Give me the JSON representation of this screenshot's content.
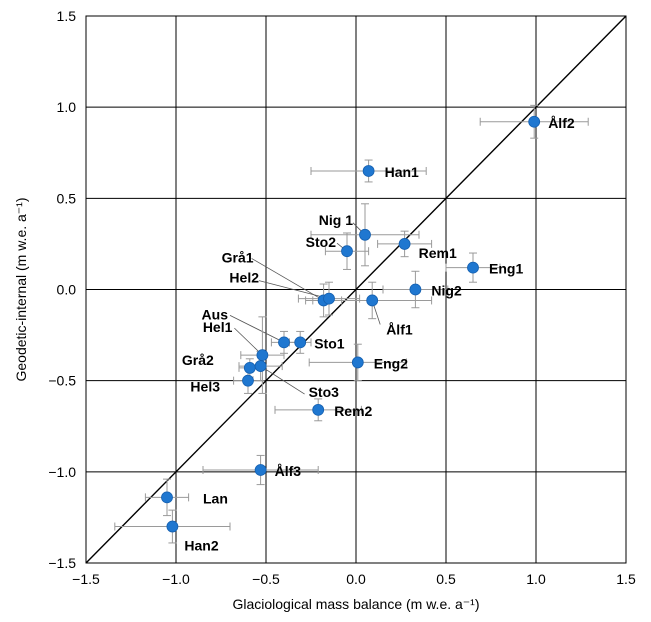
{
  "chart_data": {
    "type": "scatter",
    "xlabel": "Glaciological mass balance (m w.e. a⁻¹)",
    "ylabel": "Geodetic-internal  (m w.e. a⁻¹)",
    "xlim": [
      -1.5,
      1.5
    ],
    "ylim": [
      -1.5,
      1.5
    ],
    "x_ticks": [
      "−1.5",
      "−1.0",
      "−0.5",
      "0.0",
      "0.5",
      "1.0",
      "1.5"
    ],
    "y_ticks": [
      "−1.5",
      "−1.0",
      "−0.5",
      "0.0",
      "0.5",
      "1.0",
      "1.5"
    ],
    "grid": true,
    "reference_line": "1:1",
    "marker_color": "#1f77d0",
    "points": [
      {
        "label": "Ålf2",
        "x": 0.99,
        "y": 0.92,
        "xerr": 0.3,
        "yerr": 0.09
      },
      {
        "label": "Han1",
        "x": 0.07,
        "y": 0.65,
        "xerr": 0.32,
        "yerr": 0.06
      },
      {
        "label": "Nig 1",
        "x": 0.05,
        "y": 0.3,
        "xerr": 0.3,
        "yerr": 0.17
      },
      {
        "label": "Rem1",
        "x": 0.27,
        "y": 0.25,
        "xerr": 0.15,
        "yerr": 0.07
      },
      {
        "label": "Sto2",
        "x": -0.05,
        "y": 0.21,
        "xerr": 0.12,
        "yerr": 0.1
      },
      {
        "label": "Eng1",
        "x": 0.65,
        "y": 0.12,
        "xerr": 0.15,
        "yerr": 0.08
      },
      {
        "label": "Grå1",
        "x": -0.18,
        "y": -0.06,
        "xerr": 0.1,
        "yerr": 0.09
      },
      {
        "label": "Hel2",
        "x": -0.15,
        "y": -0.05,
        "xerr": 0.17,
        "yerr": 0.09
      },
      {
        "label": "Nig2",
        "x": 0.33,
        "y": 0.0,
        "xerr": 0.18,
        "yerr": 0.1
      },
      {
        "label": "Ålf1",
        "x": 0.09,
        "y": -0.06,
        "xerr": 0.33,
        "yerr": 0.1
      },
      {
        "label": "Aus",
        "x": -0.4,
        "y": -0.29,
        "xerr": 0.07,
        "yerr": 0.06
      },
      {
        "label": "Sto1",
        "x": -0.31,
        "y": -0.29,
        "xerr": 0.06,
        "yerr": 0.06
      },
      {
        "label": "Hel1",
        "x": -0.52,
        "y": -0.36,
        "xerr": 0.12,
        "yerr": 0.21
      },
      {
        "label": "Eng2",
        "x": 0.01,
        "y": -0.4,
        "xerr": 0.27,
        "yerr": 0.1
      },
      {
        "label": "Grå2",
        "x": -0.59,
        "y": -0.43,
        "xerr": 0.06,
        "yerr": 0.05
      },
      {
        "label": "Sto3",
        "x": -0.53,
        "y": -0.42,
        "xerr": 0.12,
        "yerr": 0.08
      },
      {
        "label": "Hel3",
        "x": -0.6,
        "y": -0.5,
        "xerr": 0.08,
        "yerr": 0.07
      },
      {
        "label": "Rem2",
        "x": -0.21,
        "y": -0.66,
        "xerr": 0.24,
        "yerr": 0.06
      },
      {
        "label": "Ålf3",
        "x": -0.53,
        "y": -0.99,
        "xerr": 0.32,
        "yerr": 0.08
      },
      {
        "label": "Lan",
        "x": -1.05,
        "y": -1.14,
        "xerr": 0.12,
        "yerr": 0.1
      },
      {
        "label": "Han2",
        "x": -1.02,
        "y": -1.3,
        "xerr": 0.32,
        "yerr": 0.09
      }
    ]
  }
}
